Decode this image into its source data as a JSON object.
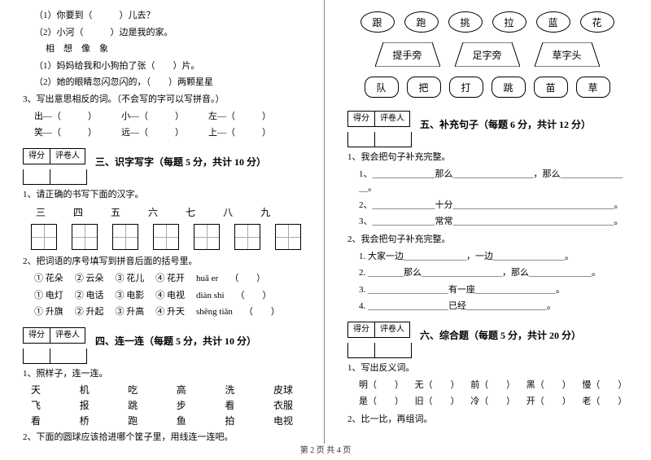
{
  "footer": "第 2 页 共 4 页",
  "left": {
    "q1_1": "（1）你要到（　　　）儿去？",
    "q1_2": "（2）小河（　　　）边是我的家。",
    "q1_opts": "相　想　像　象",
    "q1_3": "（1）妈妈给我和小狗拍了张（　　）片。",
    "q1_4": "（2）她的眼睛忽闪忽闪的，（　　）两颗星星",
    "q3_title": "3、写出意思相反的词。（不会写的字可以写拼音。）",
    "pairs": [
      [
        "出—（　　　）",
        "小—（　　　）",
        "左—（　　　）"
      ],
      [
        "笑—（　　　）",
        "远—（　　　）",
        "上—（　　　）"
      ]
    ],
    "scorer": [
      "得分",
      "评卷人"
    ],
    "sec3_title": "三、识字写字（每题 5 分，共计 10 分）",
    "sec3_q1": "1、请正确的书写下面的汉字。",
    "chars": [
      "三",
      "四",
      "五",
      "六",
      "七",
      "八",
      "九"
    ],
    "sec3_q2": "2、把词语的序号填写到拼音后面的括号里。",
    "opt_rows": [
      [
        "① 花朵",
        "② 云朵",
        "③ 花儿",
        "④ 花开",
        "huā er",
        "（　　）"
      ],
      [
        "① 电灯",
        "② 电话",
        "③ 电影",
        "④ 电视",
        "diàn shì",
        "（　　）"
      ],
      [
        "① 升旗",
        "② 升起",
        "③ 升高",
        "④ 升天",
        "shēng tiān",
        "（　　）"
      ]
    ],
    "sec4_title": "四、连一连（每题 5 分，共计 10 分）",
    "sec4_q1": "1、照样子，连一连。",
    "grid": [
      [
        "天",
        "机",
        "吃",
        "高",
        "洗",
        "皮球"
      ],
      [
        "飞",
        "报",
        "跳",
        "步",
        "看",
        "衣服"
      ],
      [
        "看",
        "桥",
        "跑",
        "鱼",
        "拍",
        "电视"
      ]
    ],
    "sec4_q2": "2、下面的圆球应该拾进哪个筐子里，用线连一连吧。"
  },
  "right": {
    "ovals": [
      "跟",
      "跑",
      "挑",
      "拉",
      "蓝",
      "花"
    ],
    "traps": [
      "提手旁",
      "足字旁",
      "草字头"
    ],
    "rrects": [
      "队",
      "把",
      "打",
      "跳",
      "苗",
      "草"
    ],
    "scorer": [
      "得分",
      "评卷人"
    ],
    "sec5_title": "五、补充句子（每题 6 分，共计 12 分）",
    "sec5_q1": "1、我会把句子补充完整。",
    "s5_items": [
      "1、＿＿＿＿＿＿＿那么＿＿＿＿＿＿＿＿＿，那么＿＿＿＿＿＿＿＿。",
      "2、＿＿＿＿＿＿＿十分＿＿＿＿＿＿＿＿＿＿＿＿＿＿＿＿＿＿。",
      "3、＿＿＿＿＿＿＿常常＿＿＿＿＿＿＿＿＿＿＿＿＿＿＿＿＿＿。"
    ],
    "sec5_q2": "2、我会把句子补充完整。",
    "s5_items2": [
      "1. 大家一边＿＿＿＿＿＿＿，一边＿＿＿＿＿＿＿＿。",
      "2. ＿＿＿＿那么＿＿＿＿＿＿＿＿＿，那么＿＿＿＿＿＿＿。",
      "3. ＿＿＿＿＿＿＿＿＿有一座＿＿＿＿＿＿＿＿＿。",
      "4. ＿＿＿＿＿＿＿＿＿已经＿＿＿＿＿＿＿＿＿。"
    ],
    "sec6_title": "六、综合题（每题 5 分，共计 20 分）",
    "sec6_q1": "1、写出反义词。",
    "antonyms": [
      [
        "明（　　）",
        "无（　　）",
        "前（　　）",
        "黑（　　）",
        "慢（　　）"
      ],
      [
        "是（　　）",
        "旧（　　）",
        "冷（　　）",
        "开（　　）",
        "老（　　）"
      ]
    ],
    "sec6_q2": "2、比一比，再组词。"
  },
  "style": {
    "font_size_body": 11,
    "font_size_title": 12,
    "divider_color": "#888888",
    "text_color": "#000000",
    "background": "#ffffff"
  }
}
